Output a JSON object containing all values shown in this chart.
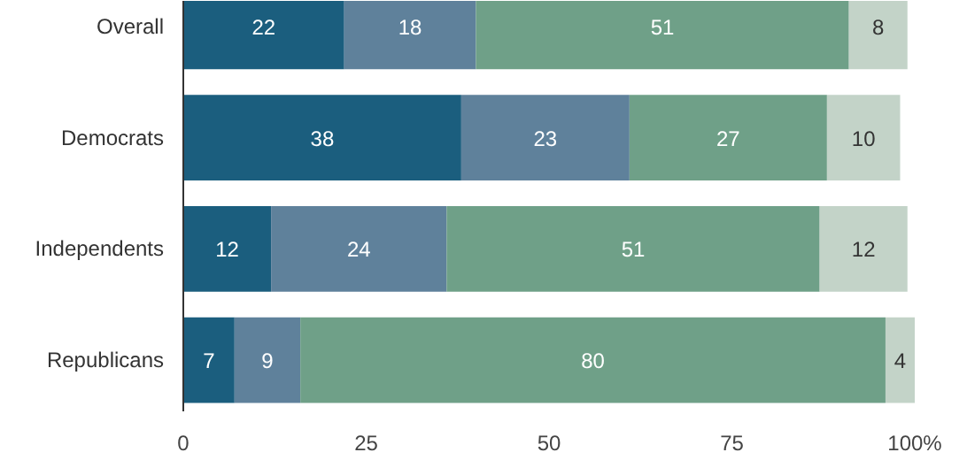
{
  "chart_data": {
    "type": "bar",
    "orientation": "horizontal",
    "stacked": true,
    "data_labels": true,
    "grid": false,
    "categories": [
      "Overall",
      "Democrats",
      "Independents",
      "Republicans"
    ],
    "series": [
      {
        "color": "#1b5e7e",
        "values": [
          22,
          38,
          12,
          7
        ]
      },
      {
        "color": "#5f819b",
        "values": [
          18,
          23,
          24,
          9
        ]
      },
      {
        "color": "#6fa088",
        "values": [
          51,
          27,
          51,
          80
        ]
      },
      {
        "color": "#c3d3c8",
        "values": [
          8,
          10,
          12,
          4
        ]
      }
    ],
    "xlim": [
      0,
      100
    ],
    "xticks": [
      0,
      25,
      50,
      75,
      {
        "value": 100,
        "label": "100%"
      }
    ]
  }
}
